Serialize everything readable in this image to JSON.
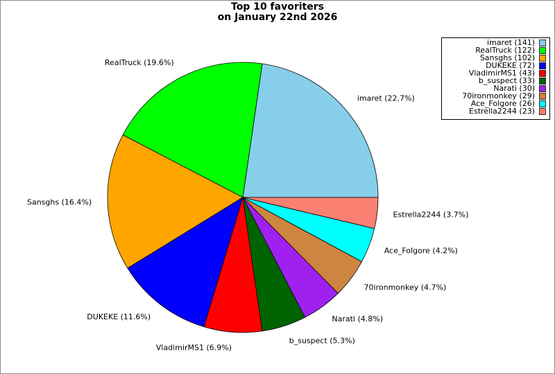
{
  "chart_data": {
    "type": "pie",
    "title": "Top 10 favoriters",
    "subtitle": "on January 22nd 2026",
    "values": [
      141,
      122,
      102,
      72,
      43,
      33,
      30,
      29,
      26,
      23
    ],
    "legend_labels": [
      "imaret (141)",
      "RealTruck (122)",
      "Sansghs (102)",
      "DUKEKE (72)",
      "VladimirMS1 (43)",
      "b_suspect (33)",
      "Narati (30)",
      "70ironmonkey (29)",
      "Ace_Folgore (26)",
      "Estrella2244 (23)"
    ],
    "percents": [
      22.7,
      19.6,
      16.4,
      11.6,
      6.9,
      5.3,
      4.8,
      4.7,
      4.2,
      3.7
    ],
    "percent_labels": [
      "imaret (22.7%)",
      "RealTruck (19.6%)",
      "Sansghs (16.4%)",
      "DUKEKE (11.6%)",
      "VladimirMS1 (6.9%)",
      "b_suspect (5.3%)",
      "Narati (4.8%)",
      "70ironmonkey (4.7%)",
      "Ace_Folgore (4.2%)",
      "Estrella2244 (3.7%)"
    ],
    "colors": [
      "#87ceeb",
      "#00ff00",
      "#ffa500",
      "#0000ff",
      "#ff0000",
      "#006400",
      "#a020f0",
      "#cd853f",
      "#00ffff",
      "#fa8072"
    ],
    "legend": "upper right"
  }
}
